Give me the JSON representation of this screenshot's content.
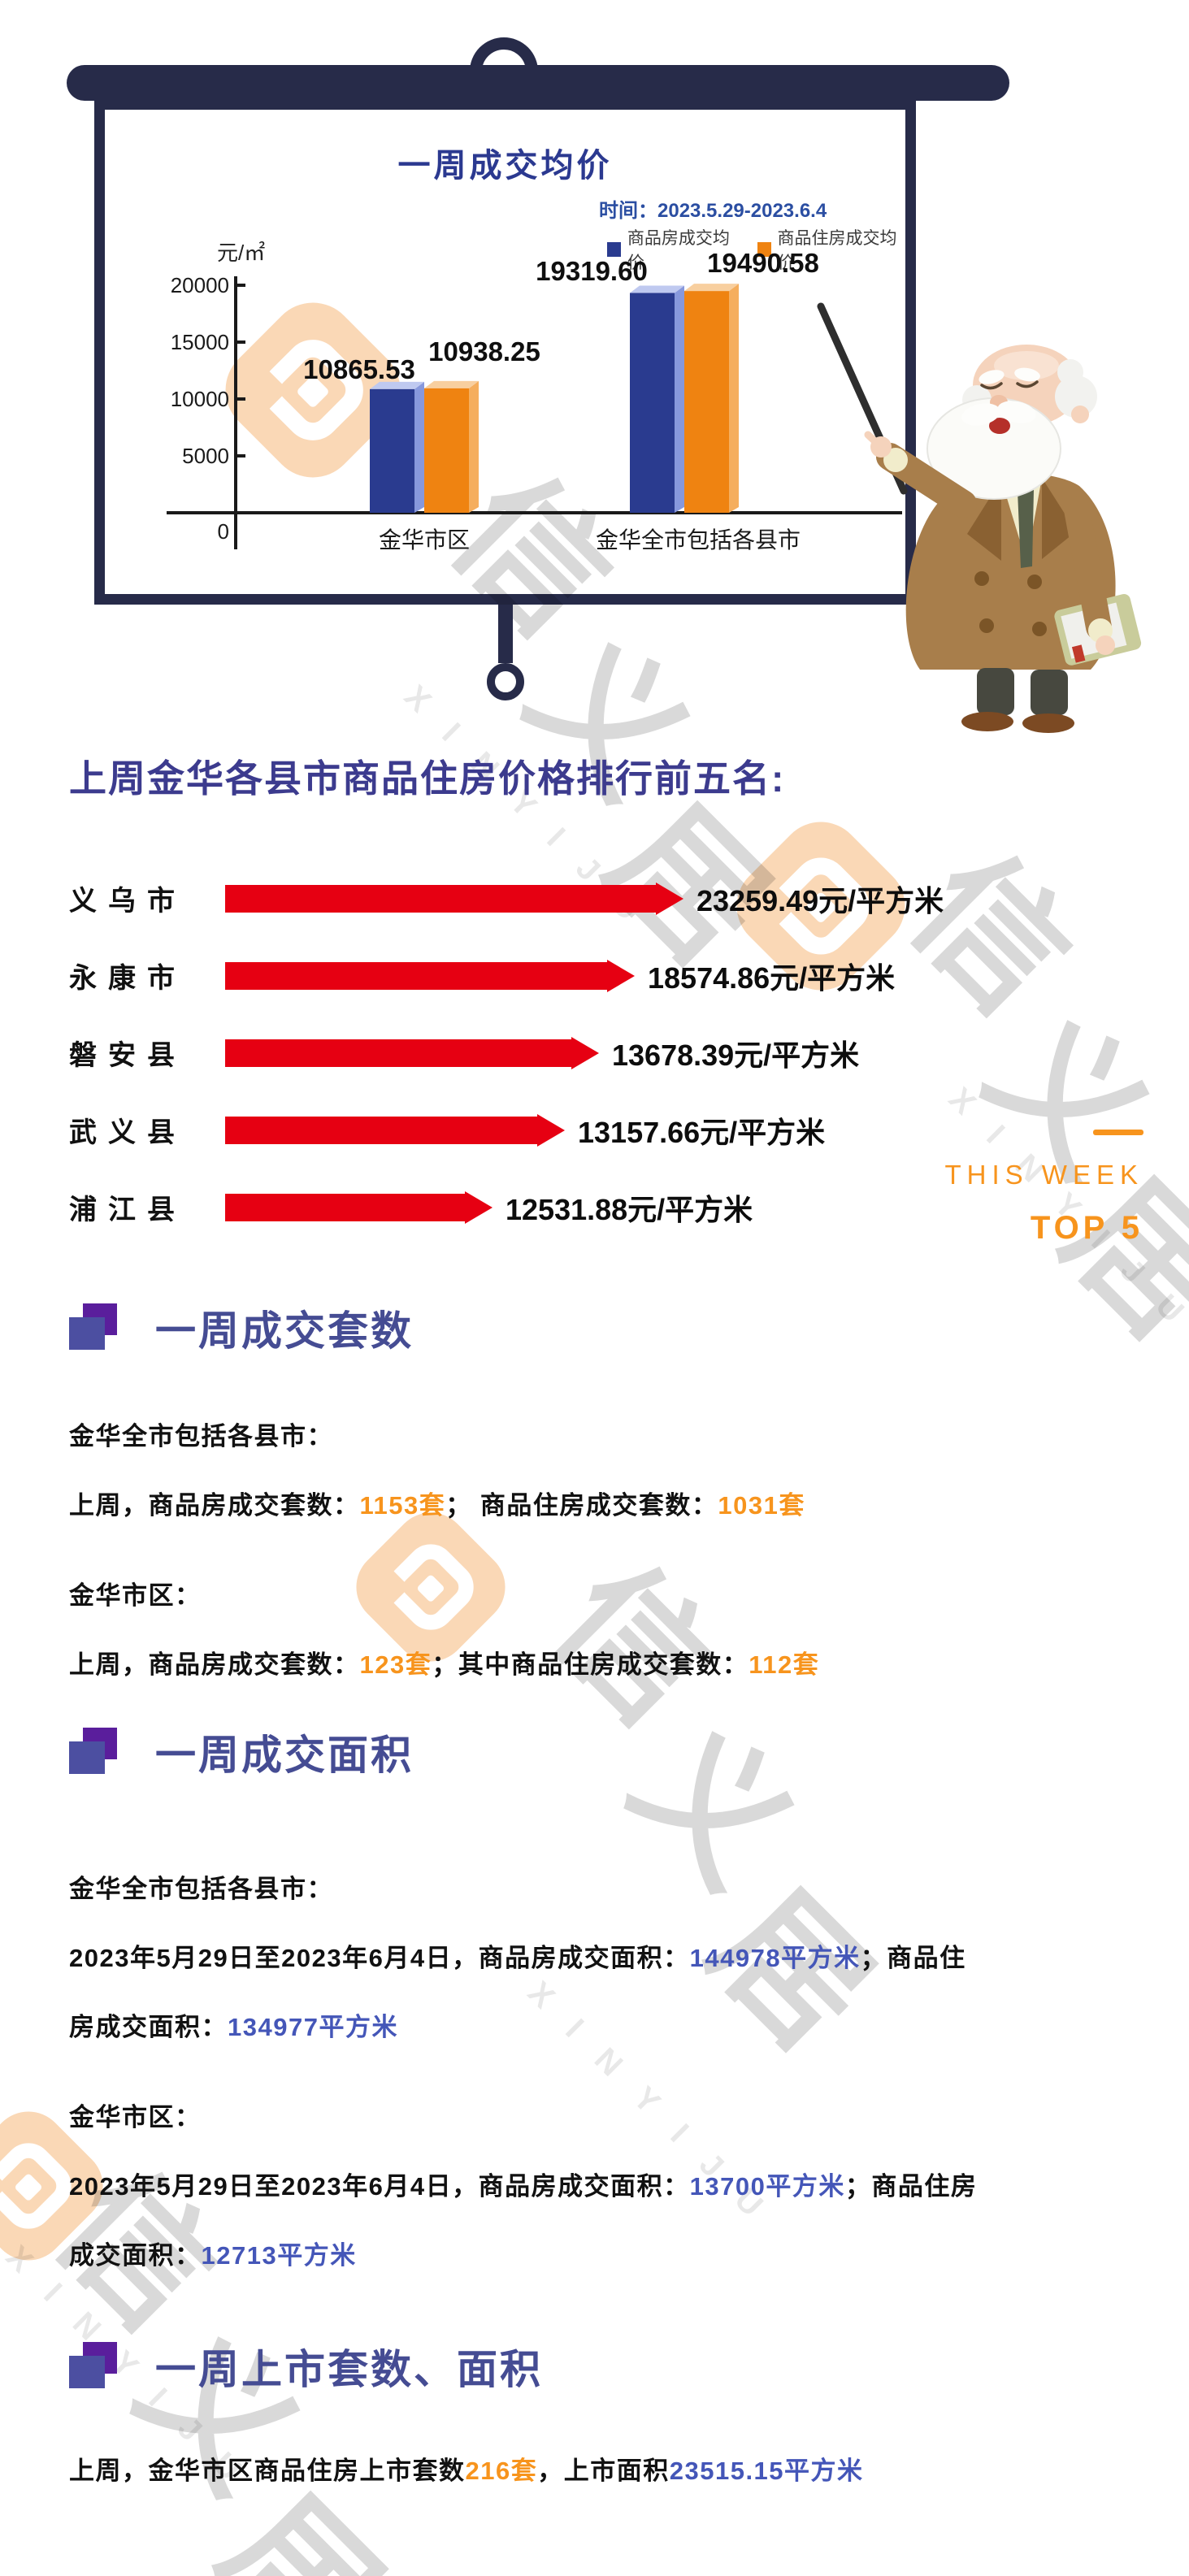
{
  "brand": {
    "cn": "信义居",
    "en": "X I N Y I J U"
  },
  "chart_data": {
    "type": "bar",
    "title": "一周成交均价",
    "subtitle": "时间：2023.5.29-2023.6.4",
    "unit_label": "元/㎡",
    "categories": [
      "金华市区",
      "金华全市包括各县市"
    ],
    "series": [
      {
        "name": "商品房成交均价",
        "color": "#2A3B8F",
        "side_color": "#8798DC",
        "top_color": "#BFC9F0",
        "values": [
          10865.53,
          19319.6
        ]
      },
      {
        "name": "商品住房成交均价",
        "color": "#EF8311",
        "side_color": "#F5AE5E",
        "top_color": "#F8CF9F",
        "values": [
          10938.25,
          19490.58
        ]
      }
    ],
    "yticks": [
      0,
      5000,
      10000,
      15000,
      20000
    ],
    "ylim": [
      0,
      20000
    ],
    "grid": false,
    "legend_position": "top-right"
  },
  "ranking": {
    "title": "上周金华各县市商品住房价格排行前五名:",
    "rows": [
      {
        "label": "义乌市",
        "value": "23259.49元/平方米",
        "bar": 530
      },
      {
        "label": "永康市",
        "value": "18574.86元/平方米",
        "bar": 470
      },
      {
        "label": "磐安县",
        "value": "13678.39元/平方米",
        "bar": 426
      },
      {
        "label": "武义县",
        "value": "13157.66元/平方米",
        "bar": 384
      },
      {
        "label": "浦江县",
        "value": "12531.88元/平方米",
        "bar": 295
      }
    ],
    "badge": {
      "line1": "THIS WEEK",
      "line2": "TOP 5"
    }
  },
  "sections": [
    {
      "title": "一周成交套数",
      "paragraphs": [
        [
          [
            {
              "t": "金华全市包括各县市："
            }
          ],
          [
            {
              "t": "上周，商品房成交套数："
            },
            {
              "t": "1153套",
              "c": "orange"
            },
            {
              "t": "； 商品住房成交套数："
            },
            {
              "t": "1031套",
              "c": "orange"
            }
          ]
        ],
        [
          [
            {
              "t": "金华市区："
            }
          ],
          [
            {
              "t": "上周，商品房成交套数："
            },
            {
              "t": "123套",
              "c": "orange"
            },
            {
              "t": "；其中商品住房成交套数："
            },
            {
              "t": "112套",
              "c": "orange"
            }
          ]
        ]
      ]
    },
    {
      "title": "一周成交面积",
      "paragraphs": [
        [
          [
            {
              "t": "金华全市包括各县市："
            }
          ],
          [
            {
              "t": "2023年5月29日至2023年6月4日，商品房成交面积："
            },
            {
              "t": "144978平方米",
              "c": "blue"
            },
            {
              "t": "；商品住"
            }
          ],
          [
            {
              "t": "房成交面积："
            },
            {
              "t": "134977平方米",
              "c": "blue"
            }
          ]
        ],
        [
          [
            {
              "t": "金华市区："
            }
          ],
          [
            {
              "t": "2023年5月29日至2023年6月4日，商品房成交面积："
            },
            {
              "t": "13700平方米",
              "c": "blue"
            },
            {
              "t": "；商品住房"
            }
          ],
          [
            {
              "t": "成交面积："
            },
            {
              "t": "12713平方米",
              "c": "blue"
            }
          ]
        ]
      ]
    },
    {
      "title": "一周上市套数、面积",
      "paragraphs": [
        [
          [
            {
              "t": "上周，金华市区商品住房上市套数"
            },
            {
              "t": "216套",
              "c": "orange"
            },
            {
              "t": "，上市面积"
            },
            {
              "t": "23515.15平方米",
              "c": "blue"
            }
          ]
        ]
      ]
    }
  ],
  "colors": {
    "accent_orange": "#F7941D",
    "accent_blue": "#4456B8",
    "arrow_red": "#E60012",
    "frame_navy": "#272B49",
    "title_indigo": "#3C3B8E"
  }
}
